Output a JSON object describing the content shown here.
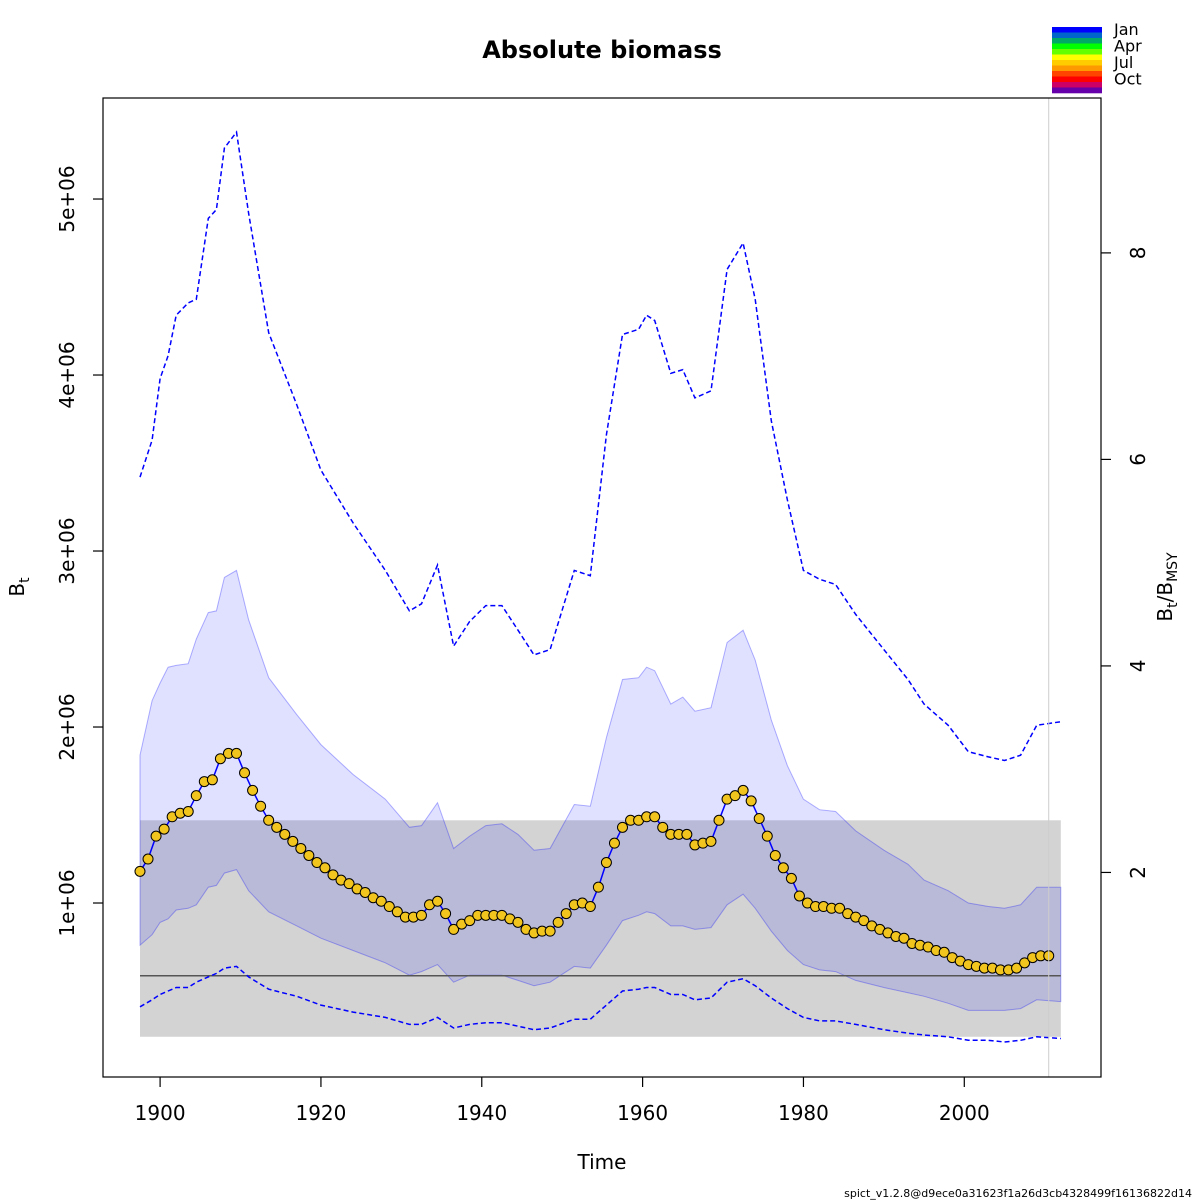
{
  "chart_data": {
    "type": "line",
    "title": "Absolute biomass",
    "xlabel": "Time",
    "ylabel": [
      "B",
      "t"
    ],
    "y2label": [
      "B",
      "t",
      "/B",
      "MSY"
    ],
    "footer": "spict_v1.2.8@d9ece0a31623f1a26d3cb4328499f16136822d14",
    "xlim": [
      1892.9,
      2017.0
    ],
    "xticks": [
      1900,
      1920,
      1940,
      1960,
      1980,
      2000
    ],
    "ylim": [
      11400,
      5574000
    ],
    "yticks": [
      {
        "value": 1000000,
        "label": "1e+06"
      },
      {
        "value": 2000000,
        "label": "2e+06"
      },
      {
        "value": 3000000,
        "label": "3e+06"
      },
      {
        "value": 4000000,
        "label": "4e+06"
      },
      {
        "value": 5000000,
        "label": "5e+06"
      }
    ],
    "y2lim": [
      0.019,
      9.5
    ],
    "y2ticks": [
      2,
      4,
      6,
      8
    ],
    "bmsy": {
      "value": 587000,
      "lower": 240000,
      "upper": 1470000,
      "x": [
        1897.5,
        2012
      ],
      "color": "#d3d3d3",
      "line_color": "#555555"
    },
    "vline": {
      "x": 2010.5,
      "color": "#cccccc"
    },
    "month_key": {
      "labels": [
        "Jan",
        null,
        null,
        "Apr",
        null,
        null,
        "Jul",
        null,
        null,
        "Oct",
        null,
        null
      ],
      "colors": [
        "#0000FF",
        "#0066CC",
        "#00AA66",
        "#00FF00",
        "#66FF00",
        "#FFFF00",
        "#FFCC00",
        "#FF9900",
        "#FF4400",
        "#FF0000",
        "#CC0066",
        "#6600AA"
      ]
    },
    "series": [
      {
        "style": "dashed",
        "color": "#0000ff",
        "x": [
          1897.5,
          1899,
          1900,
          1901,
          1902,
          1903.5,
          1904.5,
          1906,
          1907,
          1908,
          1909.5,
          1911,
          1913.5,
          1917,
          1920,
          1924,
          1928,
          1931,
          1932.5,
          1934.5,
          1936.5,
          1938.5,
          1940.5,
          1942.5,
          1944.5,
          1946.5,
          1948.5,
          1951.5,
          1953.5,
          1955.5,
          1957.5,
          1959.5,
          1960.5,
          1961.5,
          1963.5,
          1965,
          1966.5,
          1968.5,
          1970.5,
          1972.5,
          1974,
          1976,
          1978,
          1980,
          1982,
          1984,
          1986.5,
          1990,
          1993,
          1995,
          1998,
          2000.5,
          2003,
          2005,
          2007,
          2009,
          2012
        ],
        "values": [
          3420000,
          3630000,
          3980000,
          4110000,
          4340000,
          4410000,
          4430000,
          4890000,
          4940000,
          5290000,
          5380000,
          4920000,
          4240000,
          3830000,
          3460000,
          3160000,
          2890000,
          2660000,
          2700000,
          2920000,
          2460000,
          2600000,
          2690000,
          2690000,
          2550000,
          2410000,
          2440000,
          2890000,
          2860000,
          3660000,
          4230000,
          4260000,
          4340000,
          4310000,
          4010000,
          4030000,
          3870000,
          3910000,
          4600000,
          4750000,
          4430000,
          3740000,
          3290000,
          2890000,
          2840000,
          2810000,
          2640000,
          2440000,
          2270000,
          2130000,
          2010000,
          1860000,
          1830000,
          1810000,
          1840000,
          2010000,
          2030000
        ]
      },
      {
        "style": "band",
        "color": "rgba(0,0,255,0.12)",
        "edge": "rgba(0,0,255,0.3)",
        "x": [
          1897.5,
          1899,
          1900,
          1901,
          1902,
          1903.5,
          1904.5,
          1906,
          1907,
          1908,
          1909.5,
          1911,
          1913.5,
          1917,
          1920,
          1924,
          1928,
          1931,
          1932.5,
          1934.5,
          1936.5,
          1938.5,
          1940.5,
          1942.5,
          1944.5,
          1946.5,
          1948.5,
          1951.5,
          1953.5,
          1955.5,
          1957.5,
          1959.5,
          1960.5,
          1961.5,
          1963.5,
          1965,
          1966.5,
          1968.5,
          1970.5,
          1972.5,
          1974,
          1976,
          1978,
          1980,
          1982,
          1984,
          1986.5,
          1990,
          1993,
          1995,
          1998,
          2000.5,
          2003,
          2005,
          2007,
          2009,
          2012
        ],
        "upper": [
          1840000,
          2150000,
          2250000,
          2340000,
          2350000,
          2360000,
          2500000,
          2650000,
          2660000,
          2850000,
          2890000,
          2610000,
          2280000,
          2070000,
          1900000,
          1730000,
          1590000,
          1430000,
          1440000,
          1570000,
          1310000,
          1380000,
          1440000,
          1450000,
          1390000,
          1300000,
          1310000,
          1560000,
          1550000,
          1940000,
          2270000,
          2280000,
          2340000,
          2320000,
          2130000,
          2170000,
          2090000,
          2110000,
          2480000,
          2550000,
          2380000,
          2040000,
          1780000,
          1590000,
          1530000,
          1520000,
          1410000,
          1300000,
          1220000,
          1130000,
          1070000,
          1000000,
          980000,
          970000,
          990000,
          1090000,
          1090000
        ],
        "lower": [
          760000,
          820000,
          890000,
          910000,
          960000,
          970000,
          990000,
          1090000,
          1100000,
          1170000,
          1190000,
          1070000,
          950000,
          870000,
          800000,
          730000,
          660000,
          590000,
          610000,
          650000,
          550000,
          590000,
          590000,
          590000,
          560000,
          530000,
          550000,
          640000,
          630000,
          760000,
          900000,
          930000,
          950000,
          940000,
          870000,
          870000,
          850000,
          860000,
          990000,
          1050000,
          970000,
          840000,
          730000,
          650000,
          620000,
          610000,
          560000,
          520000,
          490000,
          470000,
          430000,
          390000,
          390000,
          390000,
          400000,
          450000,
          440000
        ]
      },
      {
        "style": "dashed",
        "color": "#0000ff",
        "x": [
          1897.5,
          1899,
          1900,
          1901,
          1902,
          1903.5,
          1904.5,
          1906,
          1907,
          1908,
          1909.5,
          1911,
          1913.5,
          1917,
          1920,
          1924,
          1928,
          1931,
          1932.5,
          1934.5,
          1936.5,
          1938.5,
          1940.5,
          1942.5,
          1944.5,
          1946.5,
          1948.5,
          1951.5,
          1953.5,
          1955.5,
          1957.5,
          1959.5,
          1960.5,
          1961.5,
          1963.5,
          1965,
          1966.5,
          1968.5,
          1970.5,
          1972.5,
          1974,
          1976,
          1978,
          1980,
          1982,
          1984,
          1986.5,
          1990,
          1993,
          1995,
          1998,
          2000.5,
          2003,
          2005,
          2007,
          2009,
          2012
        ],
        "values": [
          410000,
          450000,
          480000,
          500000,
          520000,
          520000,
          550000,
          580000,
          600000,
          630000,
          640000,
          580000,
          510000,
          470000,
          420000,
          380000,
          350000,
          310000,
          310000,
          350000,
          290000,
          310000,
          320000,
          320000,
          300000,
          280000,
          290000,
          340000,
          340000,
          420000,
          500000,
          510000,
          520000,
          520000,
          480000,
          480000,
          450000,
          460000,
          550000,
          570000,
          530000,
          460000,
          400000,
          350000,
          330000,
          330000,
          310000,
          280000,
          260000,
          250000,
          240000,
          220000,
          220000,
          210000,
          220000,
          240000,
          230000
        ]
      },
      {
        "style": "points",
        "color": "#0000ff",
        "point_color": "#f2c41e",
        "x": [
          1897.5,
          1898.5,
          1899.5,
          1900.5,
          1901.5,
          1902.5,
          1903.5,
          1904.5,
          1905.5,
          1906.5,
          1907.5,
          1908.5,
          1909.5,
          1910.5,
          1911.5,
          1912.5,
          1913.5,
          1914.5,
          1915.5,
          1916.5,
          1917.5,
          1918.5,
          1919.5,
          1920.5,
          1921.5,
          1922.5,
          1923.5,
          1924.5,
          1925.5,
          1926.5,
          1927.5,
          1928.5,
          1929.5,
          1930.5,
          1931.5,
          1932.5,
          1933.5,
          1934.5,
          1935.5,
          1936.5,
          1937.5,
          1938.5,
          1939.5,
          1940.5,
          1941.5,
          1942.5,
          1943.5,
          1944.5,
          1945.5,
          1946.5,
          1947.5,
          1948.5,
          1949.5,
          1950.5,
          1951.5,
          1952.5,
          1953.5,
          1954.5,
          1955.5,
          1956.5,
          1957.5,
          1958.5,
          1959.5,
          1960.5,
          1961.5,
          1962.5,
          1963.5,
          1964.5,
          1965.5,
          1966.5,
          1967.5,
          1968.5,
          1969.5,
          1970.5,
          1971.5,
          1972.5,
          1973.5,
          1974.5,
          1975.5,
          1976.5,
          1977.5,
          1978.5,
          1979.5,
          1980.5,
          1981.5,
          1982.5,
          1983.5,
          1984.5,
          1985.5,
          1986.5,
          1987.5,
          1988.5,
          1989.5,
          1990.5,
          1991.5,
          1992.5,
          1993.5,
          1994.5,
          1995.5,
          1996.5,
          1997.5,
          1998.5,
          1999.5,
          2000.5,
          2001.5,
          2002.5,
          2003.5,
          2004.5,
          2005.5,
          2006.5,
          2007.5,
          2008.5,
          2009.5,
          2010.5
        ],
        "values": [
          1180000,
          1250000,
          1380000,
          1420000,
          1490000,
          1510000,
          1520000,
          1610000,
          1690000,
          1700000,
          1820000,
          1850000,
          1850000,
          1740000,
          1640000,
          1550000,
          1470000,
          1430000,
          1390000,
          1350000,
          1310000,
          1270000,
          1230000,
          1200000,
          1160000,
          1130000,
          1110000,
          1080000,
          1060000,
          1030000,
          1010000,
          980000,
          950000,
          920000,
          920000,
          930000,
          990000,
          1010000,
          940000,
          850000,
          880000,
          900000,
          930000,
          930000,
          930000,
          930000,
          910000,
          890000,
          850000,
          830000,
          840000,
          840000,
          890000,
          940000,
          990000,
          1000000,
          980000,
          1090000,
          1230000,
          1340000,
          1430000,
          1470000,
          1470000,
          1490000,
          1490000,
          1430000,
          1390000,
          1390000,
          1390000,
          1330000,
          1340000,
          1350000,
          1470000,
          1590000,
          1610000,
          1640000,
          1580000,
          1480000,
          1380000,
          1270000,
          1200000,
          1140000,
          1040000,
          1000000,
          980000,
          980000,
          970000,
          970000,
          940000,
          920000,
          900000,
          870000,
          850000,
          830000,
          810000,
          800000,
          770000,
          760000,
          750000,
          730000,
          720000,
          690000,
          670000,
          650000,
          640000,
          630000,
          630000,
          620000,
          620000,
          630000,
          660000,
          690000,
          700000,
          700000
        ]
      }
    ]
  }
}
